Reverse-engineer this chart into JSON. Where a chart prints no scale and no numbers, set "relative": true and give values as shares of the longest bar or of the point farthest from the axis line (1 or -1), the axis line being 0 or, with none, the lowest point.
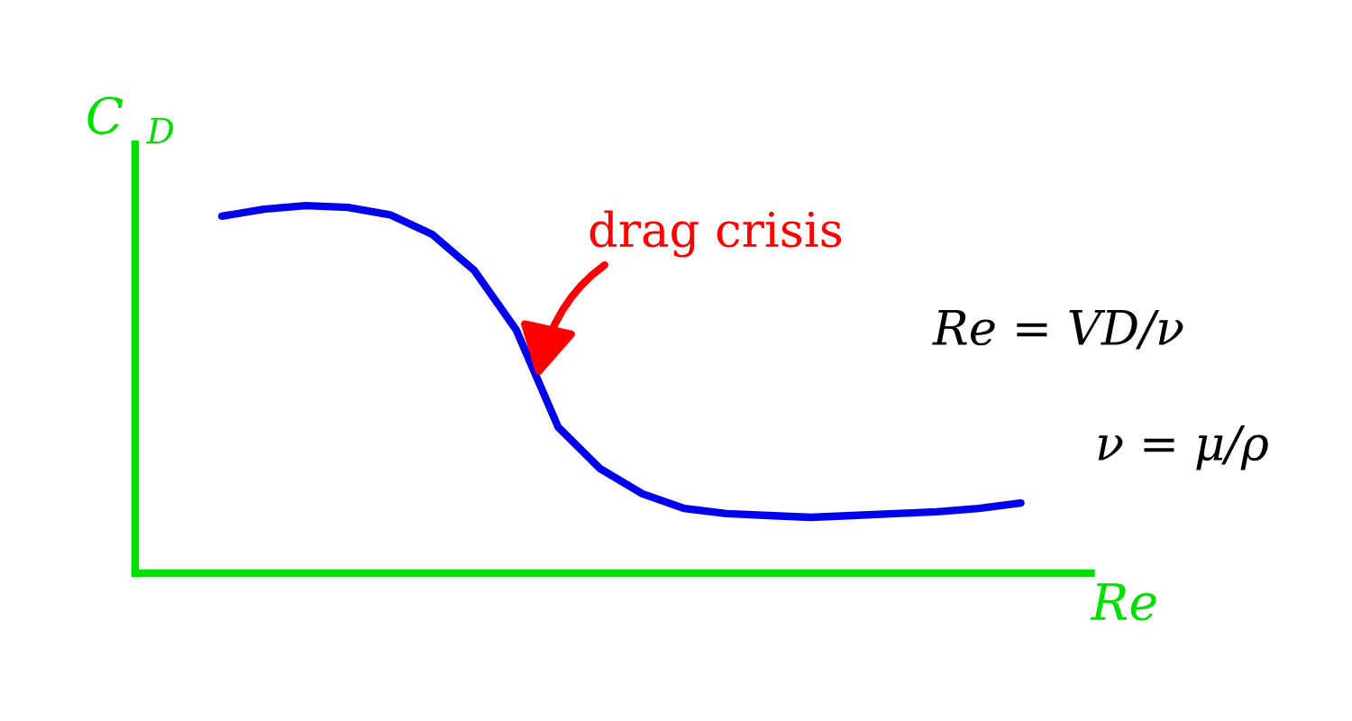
{
  "chart_data": {
    "type": "line",
    "relative": true,
    "xlabel": "Re",
    "ylabel": "C$_{D}$",
    "categories": [
      null,
      null,
      null,
      null,
      null,
      null,
      null,
      null,
      null,
      null,
      null,
      null,
      null,
      null,
      null,
      null,
      null,
      null,
      null,
      null
    ],
    "series": [
      {
        "color": "#0000ee",
        "values": [
          0.971,
          0.99,
          1.0,
          0.995,
          0.975,
          0.922,
          0.824,
          0.662,
          0.397,
          0.284,
          0.216,
          0.176,
          0.162,
          0.157,
          0.152,
          0.157,
          0.162,
          0.167,
          0.176,
          0.191
        ]
      }
    ],
    "annotations": [
      "drag crisis",
      "Re = VD/ν",
      "ν = μ/ρ"
    ],
    "marker": "none",
    "line_style": "solid"
  }
}
